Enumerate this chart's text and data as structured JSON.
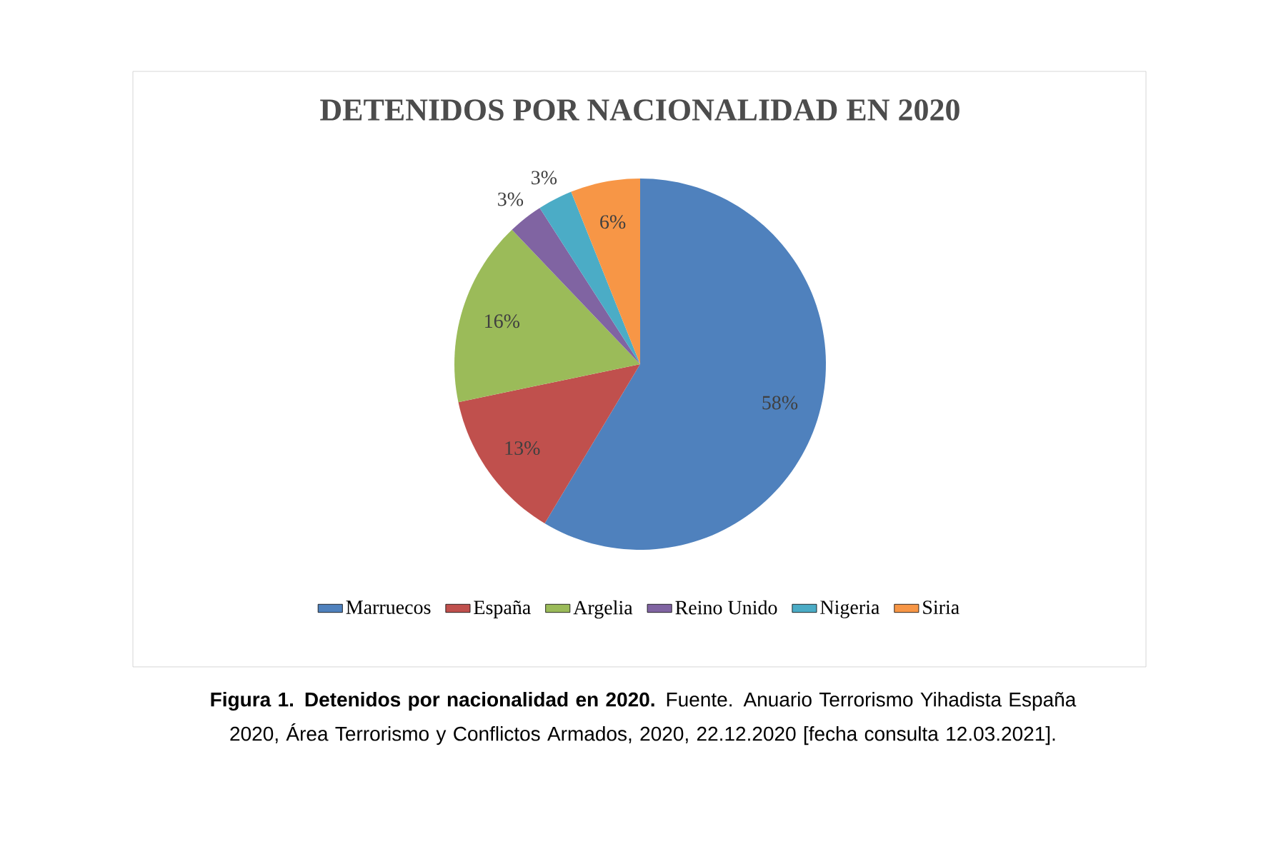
{
  "chart_data": {
    "type": "pie",
    "title": "DETENIDOS POR NACIONALIDAD EN 2020",
    "categories": [
      "Marruecos",
      "España",
      "Argelia",
      "Reino Unido",
      "Nigeria",
      "Siria"
    ],
    "values": [
      58,
      13,
      16,
      3,
      3,
      6
    ],
    "value_labels": [
      "58%",
      "13%",
      "16%",
      "3%",
      "3%",
      "6%"
    ],
    "colors": [
      "#4f81bd",
      "#c0504d",
      "#9bbb59",
      "#8064a2",
      "#4bacc6",
      "#f79646"
    ],
    "legend": "bottom",
    "annotations": [
      "**Figura 1. Detenidos por nacionalidad en 2020.** Fuente. Anuario Terrorismo Yihadista España 2020, Área Terrorismo y Conflictos Armados, 2020, 22.12.2020 [fecha consulta 12.03.2021]."
    ]
  }
}
